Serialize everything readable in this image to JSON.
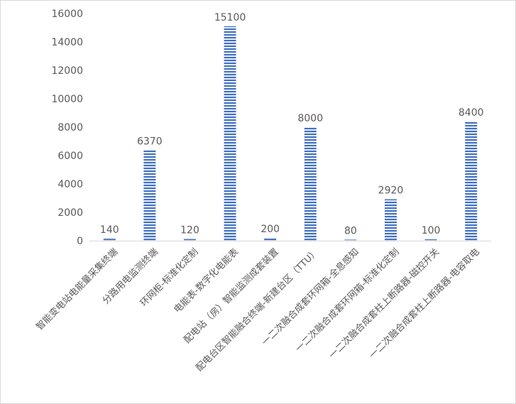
{
  "chart_data": {
    "type": "bar",
    "categories": [
      "智能变电站电能量采集终端",
      "分路用电监测终端",
      "环网柜-标准化定制",
      "电能表-数字化电能表",
      "配电站（房）智能监测成套装置",
      "配电台区智能融合终端-新建台区（TTU）",
      "一二次融合成套环网箱-全息感知",
      "一二次融合成套环网箱-标准化定制",
      "一二次融合成套柱上断路器-磁控开关",
      "一二次融合成套柱上断路器-电容取电"
    ],
    "values": [
      140,
      6370,
      120,
      15100,
      200,
      8000,
      80,
      2920,
      100,
      8400
    ],
    "data_labels": [
      "140",
      "6370",
      "120",
      "15100",
      "200",
      "8000",
      "80",
      "2920",
      "100",
      "8400"
    ],
    "yticks": [
      "0",
      "2000",
      "4000",
      "6000",
      "8000",
      "10000",
      "12000",
      "14000",
      "16000"
    ],
    "ylim": [
      0,
      16000
    ],
    "title": "",
    "xlabel": "",
    "ylabel": "",
    "grid": false,
    "legend": "none",
    "colors": {
      "bar": "#4472c4",
      "bar_stripe": "#ffffff",
      "text": "#595959",
      "axis": "#d9d9d9"
    }
  }
}
